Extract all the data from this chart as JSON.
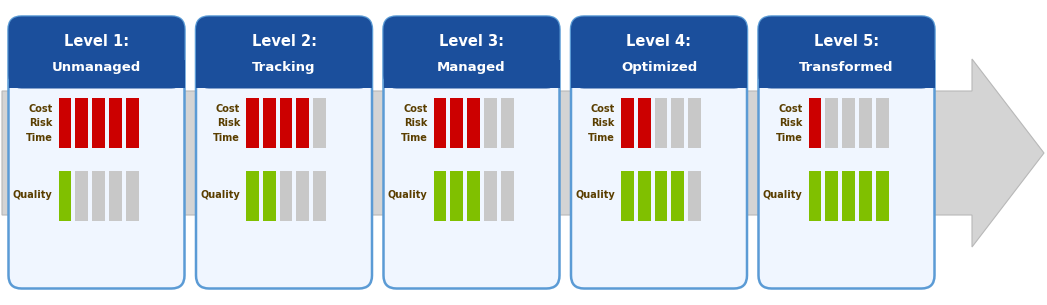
{
  "levels": [
    {
      "title": "Level 1:",
      "subtitle": "Unmanaged",
      "red_bars": 5,
      "green_bars": 1
    },
    {
      "title": "Level 2:",
      "subtitle": "Tracking",
      "red_bars": 4,
      "green_bars": 2
    },
    {
      "title": "Level 3:",
      "subtitle": "Managed",
      "red_bars": 3,
      "green_bars": 3
    },
    {
      "title": "Level 4:",
      "subtitle": "Optimized",
      "red_bars": 2,
      "green_bars": 4
    },
    {
      "title": "Level 5:",
      "subtitle": "Transformed",
      "red_bars": 1,
      "green_bars": 5
    }
  ],
  "total_bars": 5,
  "header_color": "#1b4f9c",
  "card_border_color": "#5b9bd5",
  "card_bg_color": "#f0f6ff",
  "red_color": "#cc0000",
  "green_color": "#80c000",
  "gray_color": "#c8c8c8",
  "text_color_header": "#ffffff",
  "label_color": "#5a3e00",
  "bg_color": "#ffffff",
  "arrow_facecolor": "#d4d4d4",
  "arrow_edgecolor": "#b8b8b8"
}
